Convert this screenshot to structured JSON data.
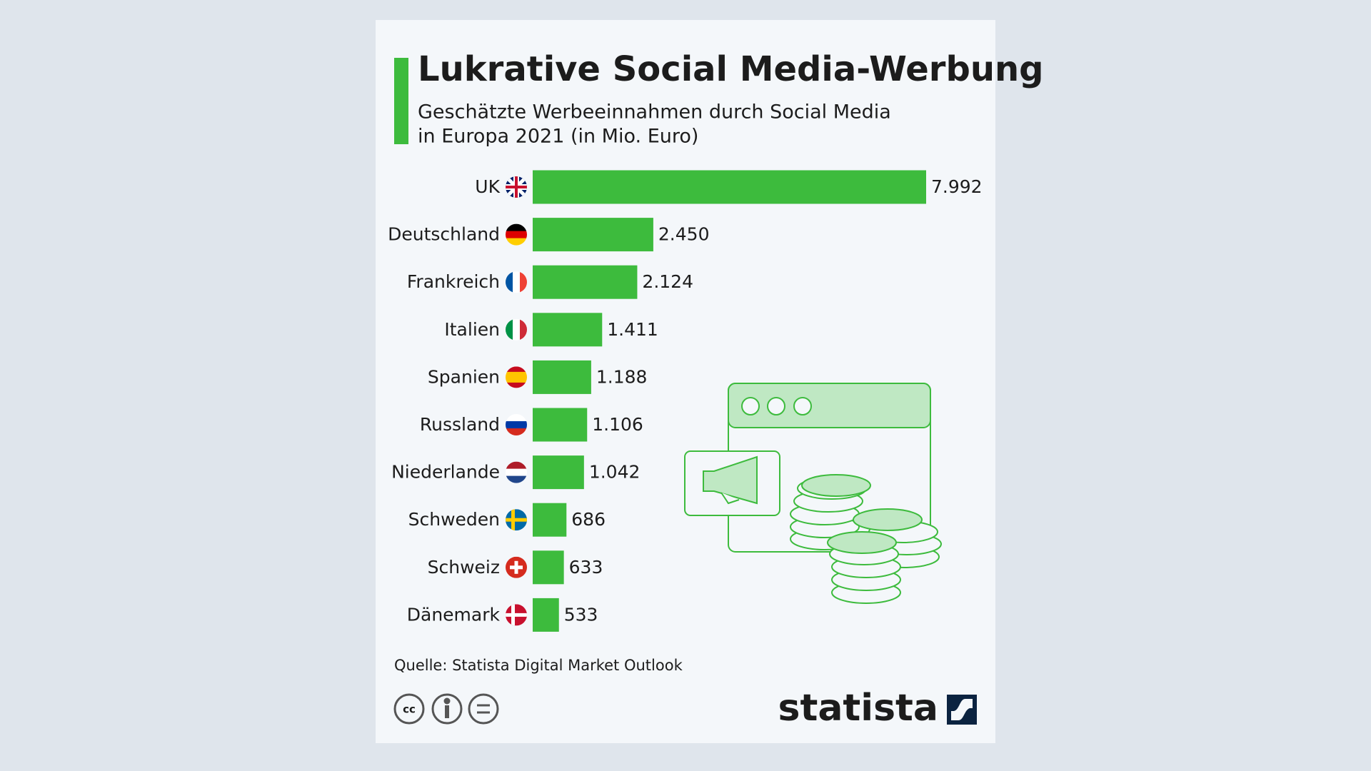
{
  "chart_data": {
    "type": "bar",
    "orientation": "horizontal",
    "title": "Lukrative Social Media-Werbung",
    "subtitle": [
      "Geschätzte Werbeeinnahmen durch Social Media",
      "in Europa 2021 (in Mio. Euro)"
    ],
    "categories": [
      "UK",
      "Deutschland",
      "Frankreich",
      "Italien",
      "Spanien",
      "Russland",
      "Niederlande",
      "Schweden",
      "Schweiz",
      "Dänemark"
    ],
    "values": [
      7992,
      2450,
      2124,
      1411,
      1188,
      1106,
      1042,
      686,
      633,
      533
    ],
    "value_labels": [
      "7.992",
      "2.450",
      "2.124",
      "1.411",
      "1.188",
      "1.106",
      "1.042",
      "686",
      "633",
      "533"
    ],
    "color": "#3dbb3d",
    "source": "Quelle: Statista Digital Market Outlook",
    "brand": "statista"
  }
}
